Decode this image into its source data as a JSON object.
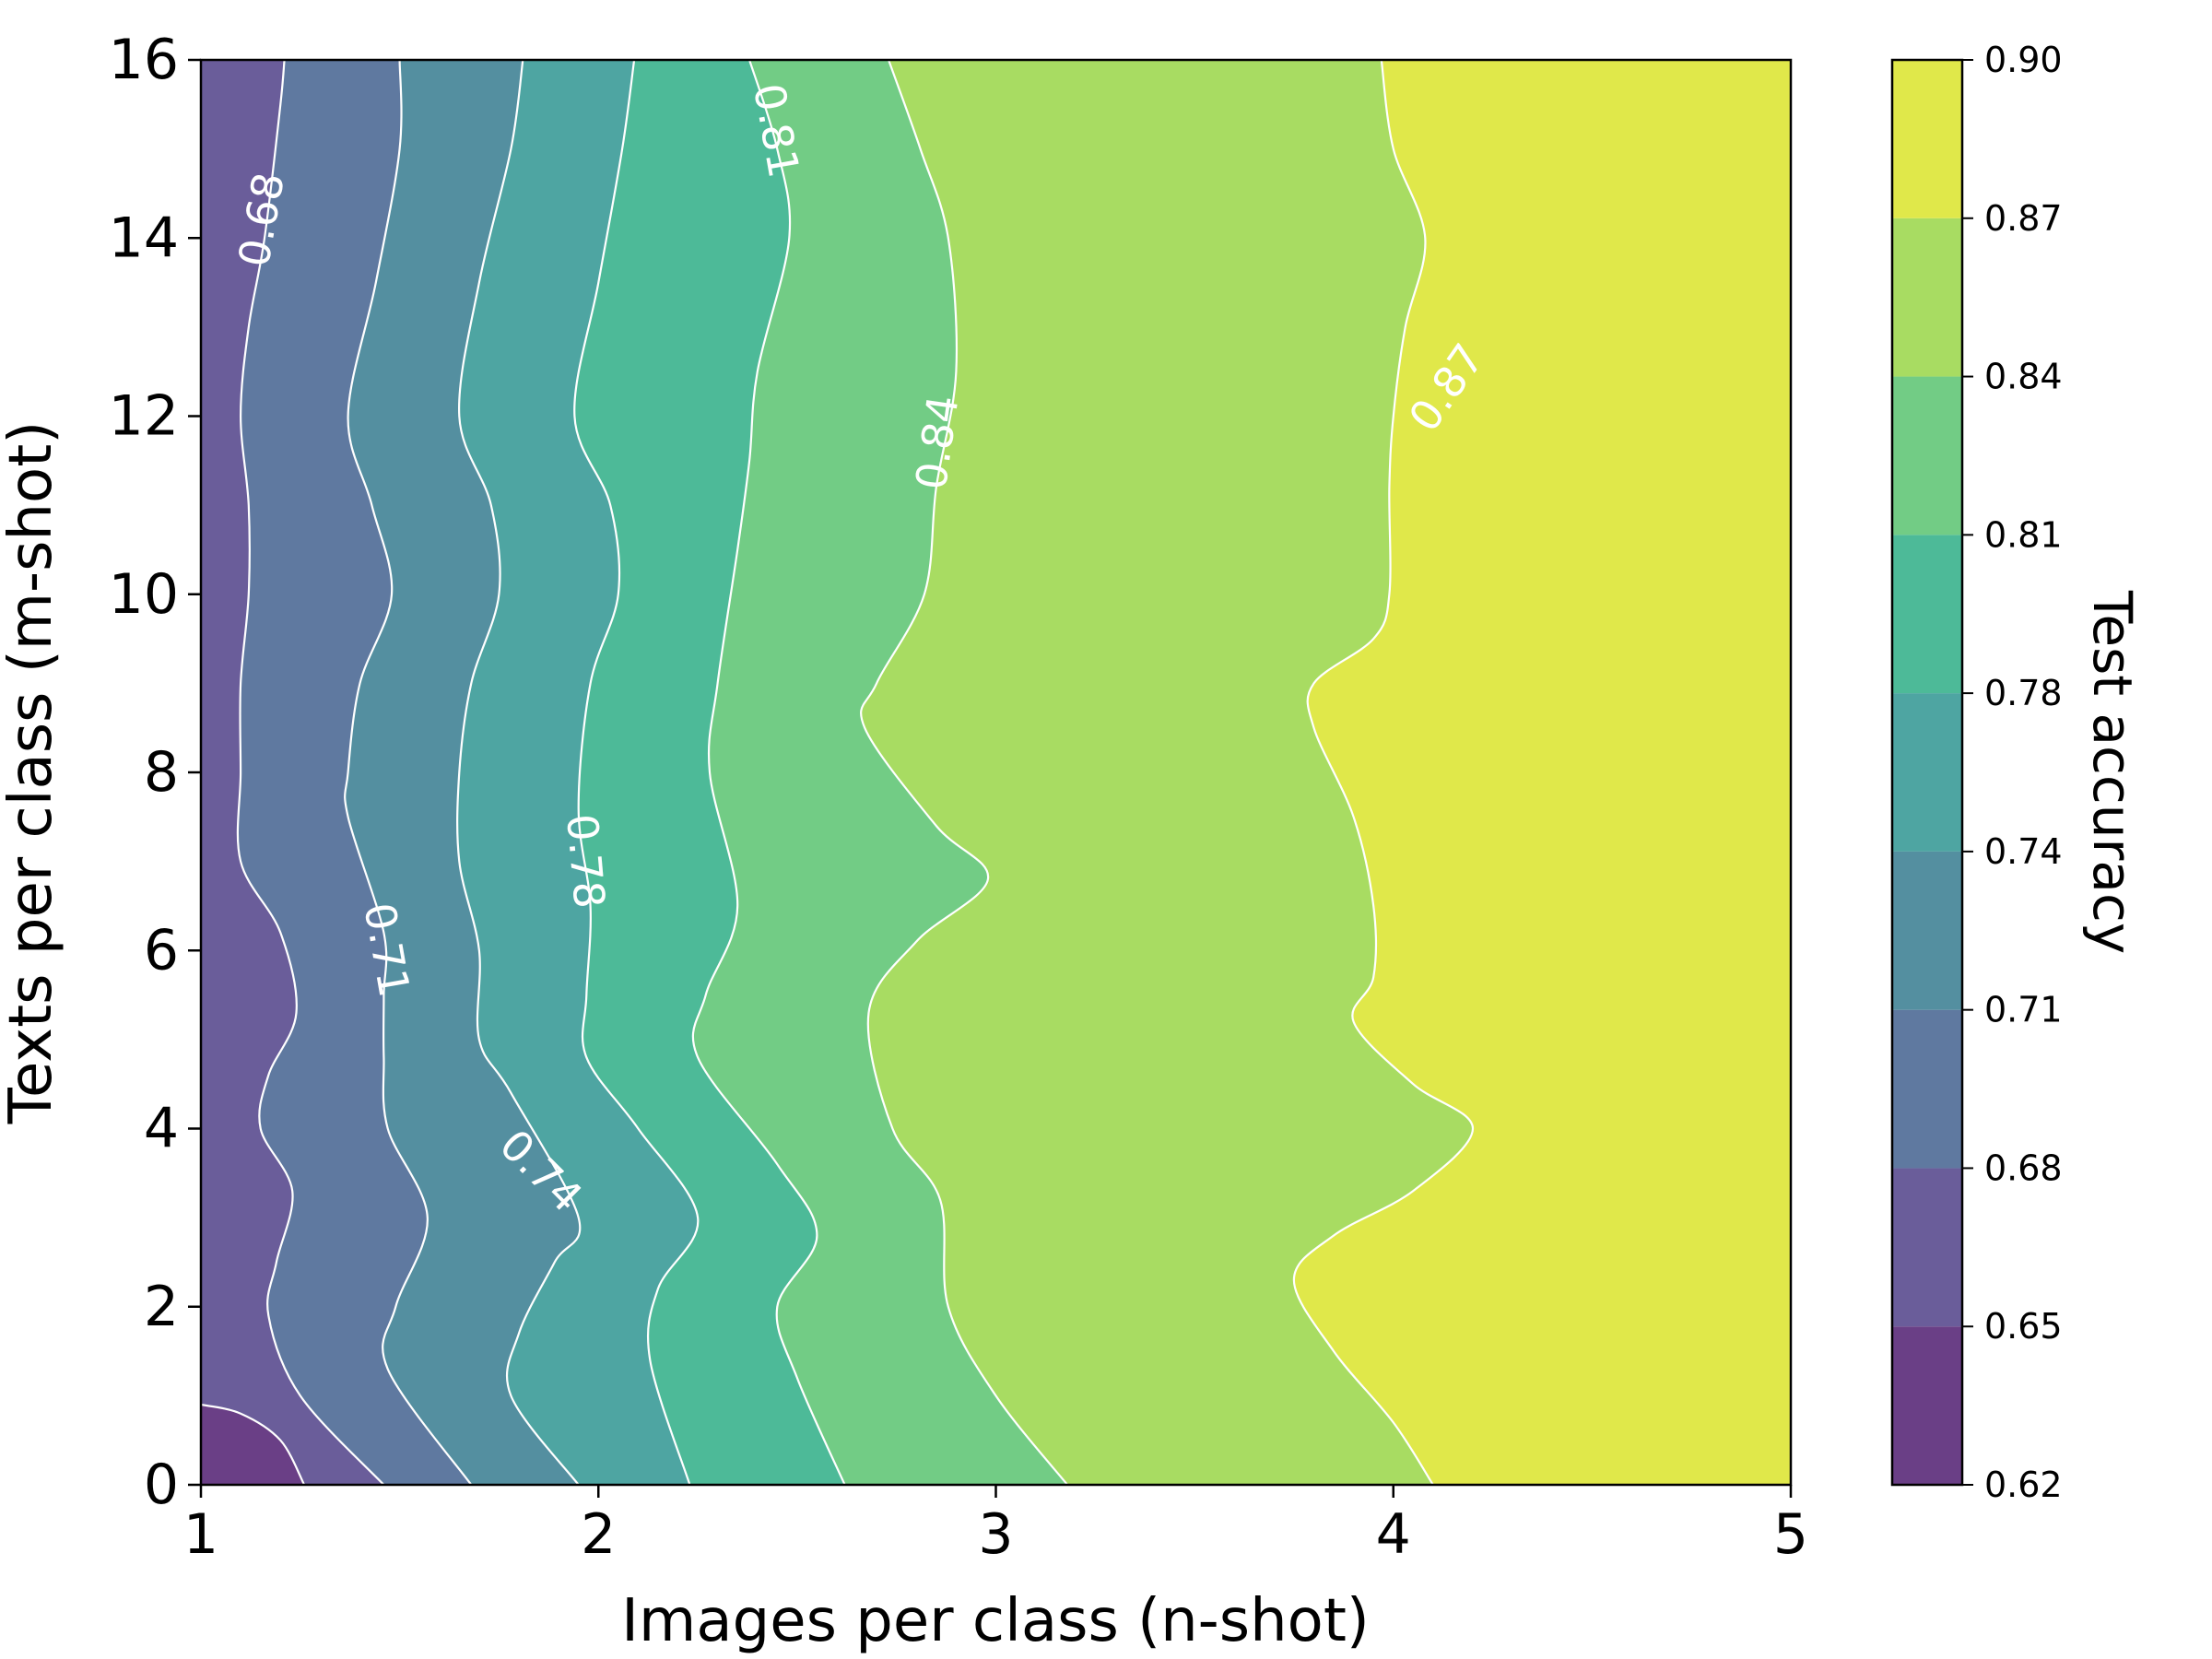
{
  "chart_data": {
    "type": "contour",
    "xlabel": "Images per class (n-shot)",
    "ylabel": "Texts per class (m-shot)",
    "xlim": [
      1,
      5
    ],
    "ylim": [
      0,
      16
    ],
    "xticks": [
      "1",
      "2",
      "3",
      "4",
      "5"
    ],
    "yticks": [
      "0",
      "2",
      "4",
      "6",
      "8",
      "10",
      "12",
      "14",
      "16"
    ],
    "colorbar": {
      "label": "Test accuracy",
      "levels": [
        0.62,
        0.65,
        0.68,
        0.71,
        0.74,
        0.78,
        0.81,
        0.84,
        0.87,
        0.9
      ],
      "tick_labels": [
        "0.62",
        "0.65",
        "0.68",
        "0.71",
        "0.74",
        "0.78",
        "0.81",
        "0.84",
        "0.87",
        "0.90"
      ],
      "colors": [
        "#6a3f86",
        "#6a5d9a",
        "#5f79a0",
        "#548fa0",
        "#4ea5a2",
        "#4dba98",
        "#72cc85",
        "#a8dc62",
        "#e0e84a"
      ]
    },
    "contour_labels": [
      {
        "text": "0.68",
        "x": 1.16,
        "y": 14.2
      },
      {
        "text": "0.71",
        "x": 1.46,
        "y": 6.0
      },
      {
        "text": "0.74",
        "x": 1.85,
        "y": 3.5
      },
      {
        "text": "0.78",
        "x": 1.96,
        "y": 7.0
      },
      {
        "text": "0.81",
        "x": 2.44,
        "y": 15.2
      },
      {
        "text": "0.84",
        "x": 2.86,
        "y": 11.7
      },
      {
        "text": "0.87",
        "x": 4.14,
        "y": 12.3
      }
    ],
    "contour_boundaries": [
      {
        "level": 0.65,
        "points": [
          [
            1.0,
            0.9
          ],
          [
            1.1,
            0.8
          ],
          [
            1.2,
            0.5
          ],
          [
            1.26,
            0.0
          ]
        ]
      },
      {
        "level": 0.68,
        "points": [
          [
            1.21,
            16
          ],
          [
            1.2,
            15.5
          ],
          [
            1.16,
            14.0
          ],
          [
            1.12,
            13.0
          ],
          [
            1.1,
            12.0
          ],
          [
            1.12,
            11.0
          ],
          [
            1.12,
            10.0
          ],
          [
            1.1,
            9.0
          ],
          [
            1.1,
            8.0
          ],
          [
            1.1,
            7.0
          ],
          [
            1.2,
            6.2
          ],
          [
            1.24,
            5.3
          ],
          [
            1.17,
            4.6
          ],
          [
            1.15,
            4.0
          ],
          [
            1.23,
            3.3
          ],
          [
            1.19,
            2.5
          ],
          [
            1.17,
            1.9
          ],
          [
            1.25,
            1.0
          ],
          [
            1.46,
            0.0
          ]
        ]
      },
      {
        "level": 0.71,
        "points": [
          [
            1.5,
            16
          ],
          [
            1.5,
            15.0
          ],
          [
            1.44,
            13.5
          ],
          [
            1.37,
            12.0
          ],
          [
            1.43,
            11.0
          ],
          [
            1.48,
            10.0
          ],
          [
            1.4,
            9.0
          ],
          [
            1.37,
            8.0
          ],
          [
            1.37,
            7.5
          ],
          [
            1.46,
            6.2
          ],
          [
            1.46,
            5.5
          ],
          [
            1.46,
            4.8
          ],
          [
            1.47,
            4.0
          ],
          [
            1.57,
            3.0
          ],
          [
            1.49,
            2.0
          ],
          [
            1.47,
            1.3
          ],
          [
            1.68,
            0.0
          ]
        ]
      },
      {
        "level": 0.74,
        "points": [
          [
            1.81,
            16
          ],
          [
            1.78,
            15.0
          ],
          [
            1.7,
            13.5
          ],
          [
            1.65,
            12.0
          ],
          [
            1.73,
            11.0
          ],
          [
            1.75,
            10.0
          ],
          [
            1.68,
            9.0
          ],
          [
            1.65,
            8.0
          ],
          [
            1.65,
            7.0
          ],
          [
            1.7,
            6.0
          ],
          [
            1.7,
            5.0
          ],
          [
            1.78,
            4.4
          ],
          [
            1.95,
            3.0
          ],
          [
            1.89,
            2.5
          ],
          [
            1.8,
            1.7
          ],
          [
            1.78,
            1.0
          ],
          [
            1.95,
            0.0
          ]
        ]
      },
      {
        "level": 0.78,
        "points": [
          [
            2.09,
            16
          ],
          [
            2.06,
            15.0
          ],
          [
            2.0,
            13.5
          ],
          [
            1.94,
            12.0
          ],
          [
            2.03,
            11.0
          ],
          [
            2.05,
            10.0
          ],
          [
            1.98,
            9.0
          ],
          [
            1.95,
            7.6
          ],
          [
            1.98,
            6.5
          ],
          [
            1.97,
            5.5
          ],
          [
            1.97,
            4.8
          ],
          [
            2.1,
            4.0
          ],
          [
            2.25,
            3.0
          ],
          [
            2.15,
            2.2
          ],
          [
            2.13,
            1.4
          ],
          [
            2.23,
            0.0
          ]
        ]
      },
      {
        "level": 0.81,
        "points": [
          [
            2.38,
            16
          ],
          [
            2.45,
            15.0
          ],
          [
            2.48,
            14.0
          ],
          [
            2.4,
            12.5
          ],
          [
            2.38,
            11.5
          ],
          [
            2.35,
            10.5
          ],
          [
            2.3,
            9.0
          ],
          [
            2.28,
            8.0
          ],
          [
            2.35,
            6.5
          ],
          [
            2.27,
            5.5
          ],
          [
            2.25,
            4.8
          ],
          [
            2.45,
            3.6
          ],
          [
            2.55,
            2.8
          ],
          [
            2.45,
            2.0
          ],
          [
            2.5,
            1.2
          ],
          [
            2.62,
            0.0
          ]
        ]
      },
      {
        "level": 0.84,
        "points": [
          [
            2.73,
            16
          ],
          [
            2.81,
            15.0
          ],
          [
            2.88,
            14.0
          ],
          [
            2.9,
            12.5
          ],
          [
            2.85,
            11.2
          ],
          [
            2.82,
            10.0
          ],
          [
            2.7,
            9.0
          ],
          [
            2.67,
            8.5
          ],
          [
            2.85,
            7.4
          ],
          [
            2.98,
            6.8
          ],
          [
            2.8,
            6.1
          ],
          [
            2.68,
            5.3
          ],
          [
            2.74,
            4.0
          ],
          [
            2.86,
            3.2
          ],
          [
            2.88,
            2.0
          ],
          [
            3.0,
            1.0
          ],
          [
            3.18,
            0.0
          ]
        ]
      },
      {
        "level": 0.87,
        "points": [
          [
            3.97,
            16
          ],
          [
            4.0,
            15.0
          ],
          [
            4.08,
            14.0
          ],
          [
            4.03,
            13.0
          ],
          [
            4.0,
            12.0
          ],
          [
            3.99,
            11.2
          ],
          [
            3.99,
            10.0
          ],
          [
            3.95,
            9.5
          ],
          [
            3.8,
            9.0
          ],
          [
            3.8,
            8.5
          ],
          [
            3.9,
            7.5
          ],
          [
            3.95,
            6.5
          ],
          [
            3.95,
            5.7
          ],
          [
            3.9,
            5.2
          ],
          [
            4.05,
            4.5
          ],
          [
            4.2,
            4.0
          ],
          [
            4.05,
            3.3
          ],
          [
            3.85,
            2.8
          ],
          [
            3.75,
            2.3
          ],
          [
            3.85,
            1.5
          ],
          [
            4.0,
            0.7
          ],
          [
            4.1,
            0.0
          ]
        ]
      }
    ]
  }
}
